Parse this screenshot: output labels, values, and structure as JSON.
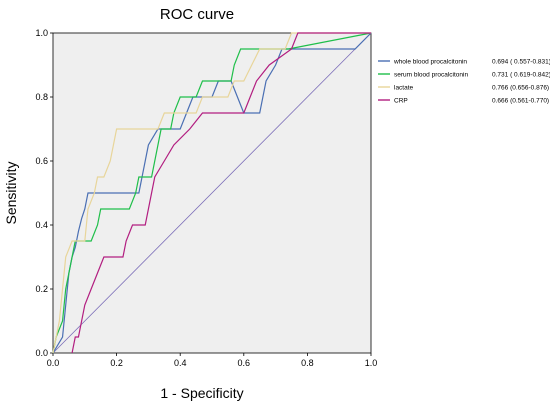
{
  "chart_data": {
    "type": "line",
    "title": "ROC curve",
    "xlabel": "1 - Specificity",
    "ylabel": "Sensitivity",
    "xlim": [
      0,
      1
    ],
    "ylim": [
      0,
      1
    ],
    "xticks": [
      "0.0",
      "0.2",
      "0.4",
      "0.6",
      "0.8",
      "1.0"
    ],
    "yticks": [
      "0.0",
      "0.2",
      "0.4",
      "0.6",
      "0.8",
      "1.0"
    ],
    "grid": false,
    "legend_position": "right",
    "reference_line": {
      "color": "#7b6db8",
      "points": [
        [
          0,
          0
        ],
        [
          1,
          1
        ]
      ]
    },
    "series": [
      {
        "name": "whole blood procalcitonin",
        "auc": "0.694 ( 0.557-0.831)",
        "color": "#4a6fb3",
        "points": [
          [
            0,
            0
          ],
          [
            0.03,
            0.05
          ],
          [
            0.04,
            0.15
          ],
          [
            0.05,
            0.25
          ],
          [
            0.06,
            0.3
          ],
          [
            0.07,
            0.33
          ],
          [
            0.08,
            0.38
          ],
          [
            0.09,
            0.42
          ],
          [
            0.1,
            0.45
          ],
          [
            0.11,
            0.5
          ],
          [
            0.27,
            0.5
          ],
          [
            0.29,
            0.6
          ],
          [
            0.3,
            0.65
          ],
          [
            0.33,
            0.7
          ],
          [
            0.4,
            0.7
          ],
          [
            0.42,
            0.75
          ],
          [
            0.44,
            0.8
          ],
          [
            0.5,
            0.8
          ],
          [
            0.52,
            0.85
          ],
          [
            0.56,
            0.85
          ],
          [
            0.58,
            0.8
          ],
          [
            0.6,
            0.75
          ],
          [
            0.65,
            0.75
          ],
          [
            0.67,
            0.85
          ],
          [
            0.7,
            0.9
          ],
          [
            0.72,
            0.95
          ],
          [
            0.95,
            0.95
          ],
          [
            1,
            1
          ]
        ]
      },
      {
        "name": "serum blood procalcitonin",
        "auc": "0.731 ( 0.619-0.842)",
        "color": "#1fbf4a",
        "points": [
          [
            0,
            0
          ],
          [
            0.01,
            0.05
          ],
          [
            0.03,
            0.1
          ],
          [
            0.04,
            0.2
          ],
          [
            0.05,
            0.25
          ],
          [
            0.06,
            0.3
          ],
          [
            0.07,
            0.35
          ],
          [
            0.12,
            0.35
          ],
          [
            0.14,
            0.4
          ],
          [
            0.15,
            0.45
          ],
          [
            0.24,
            0.45
          ],
          [
            0.26,
            0.5
          ],
          [
            0.27,
            0.55
          ],
          [
            0.31,
            0.55
          ],
          [
            0.33,
            0.65
          ],
          [
            0.34,
            0.7
          ],
          [
            0.37,
            0.7
          ],
          [
            0.38,
            0.75
          ],
          [
            0.4,
            0.8
          ],
          [
            0.45,
            0.8
          ],
          [
            0.47,
            0.85
          ],
          [
            0.56,
            0.85
          ],
          [
            0.57,
            0.9
          ],
          [
            0.59,
            0.95
          ],
          [
            0.74,
            0.95
          ],
          [
            1,
            1
          ]
        ]
      },
      {
        "name": "lactate",
        "auc": "0.766 (0.656-0.876)",
        "color": "#e8d59a",
        "points": [
          [
            0,
            0
          ],
          [
            0.02,
            0.1
          ],
          [
            0.03,
            0.2
          ],
          [
            0.04,
            0.3
          ],
          [
            0.06,
            0.35
          ],
          [
            0.1,
            0.35
          ],
          [
            0.11,
            0.45
          ],
          [
            0.13,
            0.5
          ],
          [
            0.14,
            0.55
          ],
          [
            0.16,
            0.55
          ],
          [
            0.18,
            0.6
          ],
          [
            0.19,
            0.65
          ],
          [
            0.2,
            0.7
          ],
          [
            0.33,
            0.7
          ],
          [
            0.35,
            0.75
          ],
          [
            0.45,
            0.75
          ],
          [
            0.47,
            0.8
          ],
          [
            0.55,
            0.8
          ],
          [
            0.57,
            0.85
          ],
          [
            0.6,
            0.85
          ],
          [
            0.65,
            0.95
          ],
          [
            0.73,
            0.95
          ],
          [
            0.75,
            1
          ],
          [
            1,
            1
          ]
        ]
      },
      {
        "name": "CRP",
        "auc": "0.666 (0.561-0.770)",
        "color": "#b21e80",
        "points": [
          [
            0.06,
            0
          ],
          [
            0.07,
            0.05
          ],
          [
            0.08,
            0.05
          ],
          [
            0.1,
            0.15
          ],
          [
            0.12,
            0.2
          ],
          [
            0.14,
            0.25
          ],
          [
            0.16,
            0.3
          ],
          [
            0.22,
            0.3
          ],
          [
            0.23,
            0.35
          ],
          [
            0.25,
            0.4
          ],
          [
            0.29,
            0.4
          ],
          [
            0.3,
            0.45
          ],
          [
            0.32,
            0.55
          ],
          [
            0.35,
            0.6
          ],
          [
            0.38,
            0.65
          ],
          [
            0.43,
            0.7
          ],
          [
            0.47,
            0.75
          ],
          [
            0.6,
            0.75
          ],
          [
            0.62,
            0.8
          ],
          [
            0.64,
            0.85
          ],
          [
            0.68,
            0.9
          ],
          [
            0.75,
            0.95
          ],
          [
            0.77,
            1
          ],
          [
            1,
            1
          ]
        ]
      }
    ]
  }
}
